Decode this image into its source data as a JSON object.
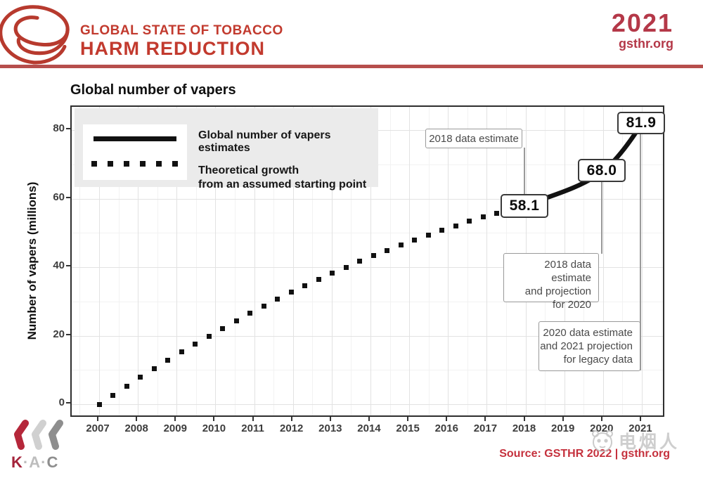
{
  "header": {
    "org_line1": "GLOBAL STATE OF TOBACCO",
    "org_line2": "HARM REDUCTION",
    "year": "2021",
    "site": "gsthr.org"
  },
  "colors": {
    "brand_red": "#c23a2e",
    "accent_red": "#b43848",
    "source_red": "#c5313d",
    "rule_red": "#b64e4c",
    "series_black": "#111111",
    "grid_major": "#e2e2e2",
    "grid_minor": "#f2f2f2",
    "legend_bg": "#ebebeb",
    "callout_border": "#999999",
    "watermark_gray": "#c9c9c9",
    "kac_red": "#a4233a",
    "kac_light_gray": "#d0d0d0",
    "kac_dark_gray": "#8e8e8e"
  },
  "chart_data": {
    "type": "line",
    "title": "Global number of vapers",
    "xlabel": "",
    "ylabel": "Number of vapers (millions)",
    "x_ticks": [
      2007,
      2008,
      2009,
      2010,
      2011,
      2012,
      2013,
      2014,
      2015,
      2016,
      2017,
      2018,
      2019,
      2020,
      2021
    ],
    "y_ticks": [
      0,
      20,
      40,
      60,
      80
    ],
    "xlim": [
      2006.3,
      2021.6
    ],
    "ylim": [
      0,
      86
    ],
    "grid": "on",
    "legend_position": "top-left",
    "series": [
      {
        "name": "Global number of vapers estimates",
        "style": "solid",
        "x": [
          2018,
          2020,
          2021
        ],
        "values": [
          58.1,
          68.0,
          81.9
        ],
        "point_labels": [
          "58.1",
          "68.0",
          "81.9"
        ]
      },
      {
        "name": "Theoretical growth from an assumed starting point",
        "style": "dotted",
        "x": [
          2007,
          2008,
          2009,
          2010,
          2011,
          2012,
          2013,
          2014,
          2015,
          2016,
          2017,
          2018
        ],
        "values": [
          0,
          7.4,
          14.5,
          21.0,
          27.2,
          32.9,
          38.2,
          43.0,
          47.4,
          51.4,
          55.0,
          58.1
        ]
      }
    ],
    "annotations": [
      {
        "id": "a1",
        "lines": [
          "2018 data estimate"
        ],
        "target_year": 2018
      },
      {
        "id": "a2",
        "lines": [
          "2018 data estimate",
          "and projection",
          "for 2020"
        ],
        "target_year": 2020
      },
      {
        "id": "a3",
        "lines": [
          "2020 data estimate",
          "and 2021 projection",
          "for legacy data"
        ],
        "target_year": 2021
      }
    ]
  },
  "legend": {
    "items": [
      {
        "style": "solid",
        "lines": [
          "Global number of vapers estimates"
        ]
      },
      {
        "style": "dotted",
        "lines": [
          "Theoretical growth",
          "from an assumed starting point"
        ]
      }
    ]
  },
  "footer": {
    "source": "Source: GSTHR 2022 | gsthr.org",
    "kac_text": "K·A·C",
    "watermark_text": "电烟人"
  }
}
